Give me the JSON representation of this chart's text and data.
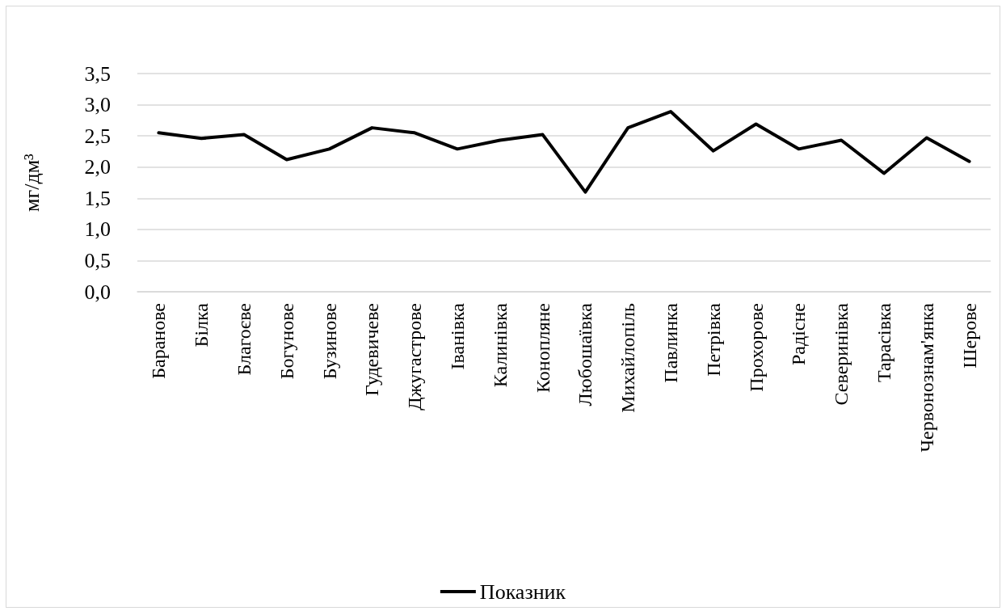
{
  "chart_data": {
    "type": "line",
    "ylabel": "мг/дм³",
    "categories": [
      "Баранове",
      "Білка",
      "Благоєве",
      "Богунове",
      "Бузинове",
      "Гудевичеве",
      "Джугастрове",
      "Іванівка",
      "Калинівка",
      "Конопляне",
      "Любошаївка",
      "Михайлопіль",
      "Павлинка",
      "Петрівка",
      "Прохорове",
      "Радісне",
      "Северинівка",
      "Тарасівка",
      "Червонознам'янка",
      "Шерове"
    ],
    "series": [
      {
        "name": "Показник",
        "color": "#000000",
        "values": [
          2.55,
          2.46,
          2.52,
          2.12,
          2.29,
          2.63,
          2.55,
          2.29,
          2.43,
          2.52,
          1.6,
          2.63,
          2.89,
          2.26,
          2.69,
          2.29,
          2.43,
          1.9,
          2.47,
          2.09
        ]
      }
    ],
    "ylim": [
      0,
      3.5
    ],
    "yticks": [
      {
        "value": 0,
        "label": "0,0"
      },
      {
        "value": 0.5,
        "label": "0,5"
      },
      {
        "value": 1,
        "label": "1,0"
      },
      {
        "value": 1.5,
        "label": "1,5"
      },
      {
        "value": 2,
        "label": "2,0"
      },
      {
        "value": 2.5,
        "label": "2,5"
      },
      {
        "value": 3,
        "label": "3,0"
      },
      {
        "value": 3.5,
        "label": "3,5"
      }
    ],
    "grid": "y",
    "legend": "bottom",
    "marker": "none"
  }
}
